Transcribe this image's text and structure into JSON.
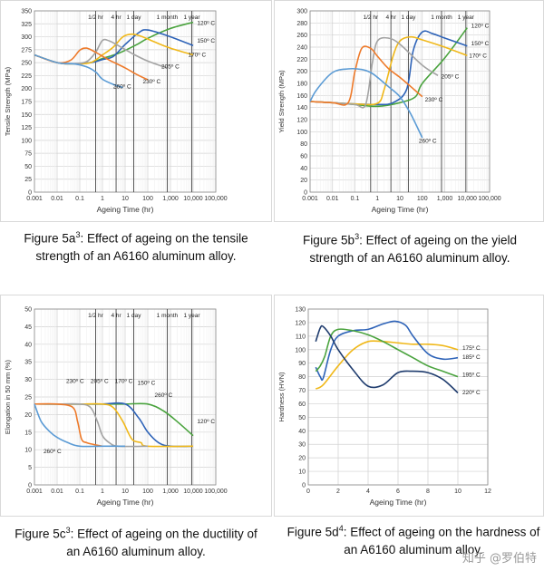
{
  "charts": [
    {
      "id": "5a",
      "caption": {
        "prefix": "Figure 5a",
        "sup": "3",
        "rest": ": Effect of ageing on the tensile strength of an A6160 aluminum alloy."
      },
      "chart_data": {
        "type": "line",
        "xscale": "log",
        "xlabel": "Ageing Time  (hr)",
        "ylabel": "Tensile Strength  (MPa)",
        "xlim": [
          0.001,
          100000
        ],
        "ylim": [
          0,
          350
        ],
        "xticks": [
          "0.001",
          "0.01",
          "0.1",
          "1",
          "10",
          "100",
          "1,000",
          "10,000",
          "100,000"
        ],
        "yticks": [
          "0",
          "25",
          "50",
          "75",
          "100",
          "125",
          "150",
          "175",
          "200",
          "225",
          "250",
          "275",
          "300",
          "325",
          "350"
        ],
        "markers": [
          {
            "label": "1/2 hr",
            "x": 0.5
          },
          {
            "label": "4 hr",
            "x": 4
          },
          {
            "label": "1 day",
            "x": 24
          },
          {
            "label": "1 month",
            "x": 720
          },
          {
            "label": "1 year",
            "x": 8760
          }
        ],
        "series": [
          {
            "name": "120° C",
            "color": "#4aa33e",
            "x": [
              0.001,
              0.01,
              0.05,
              0.3,
              1,
              5,
              30,
              100,
              1000,
              10000
            ],
            "y": [
              265,
              250,
              248,
              250,
              258,
              268,
              284,
              297,
              316,
              328
            ]
          },
          {
            "name": "150° C",
            "color": "#2e63b8",
            "x": [
              0.001,
              0.01,
              0.05,
              0.3,
              1,
              3,
              10,
              40,
              100,
              1000,
              10000
            ],
            "y": [
              265,
              250,
              248,
              250,
              256,
              262,
              285,
              308,
              313,
              300,
              283
            ]
          },
          {
            "name": "170° C",
            "color": "#f0b81a",
            "x": [
              0.001,
              0.01,
              0.05,
              0.3,
              1,
              3,
              8,
              20,
              50,
              200,
              1000,
              10000
            ],
            "y": [
              265,
              250,
              248,
              250,
              265,
              280,
              300,
              305,
              301,
              290,
              278,
              265
            ]
          },
          {
            "name": "205° C",
            "color": "#a3a3a3",
            "x": [
              0.001,
              0.01,
              0.05,
              0.2,
              0.5,
              1,
              2,
              5,
              20,
              100,
              700
            ],
            "y": [
              265,
              250,
              248,
              252,
              270,
              293,
              292,
              283,
              268,
              253,
              240
            ]
          },
          {
            "name": "230° C",
            "color": "#ee7a2a",
            "x": [
              0.001,
              0.01,
              0.04,
              0.1,
              0.2,
              0.5,
              2,
              10,
              30,
              100
            ],
            "y": [
              265,
              250,
              255,
              274,
              278,
              270,
              255,
              240,
              228,
              217
            ]
          },
          {
            "name": "260° C",
            "color": "#5b9bd5",
            "x": [
              0.001,
              0.01,
              0.05,
              0.2,
              0.5,
              1,
              3,
              8
            ],
            "y": [
              265,
              250,
              248,
              242,
              232,
              218,
              208,
              202
            ]
          }
        ],
        "annotations": [
          {
            "text": "120º C",
            "x": 15000,
            "y": 323
          },
          {
            "text": "150º C",
            "x": 15000,
            "y": 289
          },
          {
            "text": "170º C",
            "x": 6000,
            "y": 262
          },
          {
            "text": "205º C",
            "x": 400,
            "y": 239
          },
          {
            "text": "230º C",
            "x": 60,
            "y": 210
          },
          {
            "text": "260º C",
            "x": 3,
            "y": 200
          }
        ]
      }
    },
    {
      "id": "5b",
      "caption": {
        "prefix": "Figure 5b",
        "sup": "3",
        "rest": ": Effect of ageing on the yield strength of an A6160 aluminum alloy."
      },
      "chart_data": {
        "type": "line",
        "xscale": "log",
        "xlabel": "Ageing Time  (hr)",
        "ylabel": "Yield Strength  (MPa)",
        "xlim": [
          0.001,
          100000
        ],
        "ylim": [
          0,
          300
        ],
        "xticks": [
          "0.001",
          "0.01",
          "0.1",
          "1",
          "10",
          "100",
          "1,000",
          "10,000",
          "100,000"
        ],
        "yticks": [
          "0",
          "20",
          "40",
          "60",
          "80",
          "100",
          "120",
          "140",
          "160",
          "180",
          "200",
          "220",
          "240",
          "260",
          "280",
          "300"
        ],
        "markers": [
          {
            "label": "1/2 hr",
            "x": 0.5
          },
          {
            "label": "4 hr",
            "x": 4
          },
          {
            "label": "1 day",
            "x": 24
          },
          {
            "label": "1 month",
            "x": 720
          },
          {
            "label": "1 year",
            "x": 8760
          }
        ],
        "series": [
          {
            "name": "120° C",
            "color": "#4aa33e",
            "x": [
              0.001,
              0.01,
              0.1,
              1,
              10,
              50,
              100,
              1000,
              10000
            ],
            "y": [
              150,
              148,
              145,
              142,
              148,
              158,
              180,
              222,
              272
            ]
          },
          {
            "name": "150° C",
            "color": "#2e63b8",
            "x": [
              0.001,
              0.01,
              0.1,
              1,
              5,
              20,
              40,
              100,
              300,
              1000,
              10000
            ],
            "y": [
              150,
              148,
              146,
              145,
              148,
              170,
              235,
              265,
              262,
              255,
              242
            ]
          },
          {
            "name": "170° C",
            "color": "#f0b81a",
            "x": [
              0.001,
              0.01,
              0.1,
              1,
              2,
              5,
              10,
              30,
              100,
              1000,
              10000
            ],
            "y": [
              150,
              148,
              146,
              147,
              170,
              225,
              250,
              257,
              252,
              240,
              226
            ]
          },
          {
            "name": "205° C",
            "color": "#a3a3a3",
            "x": [
              0.001,
              0.01,
              0.1,
              0.3,
              0.6,
              1,
              3,
              10,
              100,
              500
            ],
            "y": [
              150,
              148,
              145,
              145,
              215,
              250,
              255,
              245,
              210,
              193
            ]
          },
          {
            "name": "230° C",
            "color": "#ee7a2a",
            "x": [
              0.001,
              0.01,
              0.05,
              0.1,
              0.2,
              0.5,
              1,
              3,
              10,
              30,
              100
            ],
            "y": [
              150,
              148,
              148,
              200,
              238,
              238,
              225,
              205,
              190,
              175,
              158
            ]
          },
          {
            "name": "260° C",
            "color": "#5b9bd5",
            "x": [
              0.001,
              0.002,
              0.01,
              0.05,
              0.2,
              0.5,
              1,
              3,
              10,
              30,
              100
            ],
            "y": [
              150,
              170,
              198,
              204,
              203,
              198,
              190,
              175,
              158,
              130,
              90
            ]
          }
        ],
        "annotations": [
          {
            "text": "120º C",
            "x": 15000,
            "y": 272
          },
          {
            "text": "150º C",
            "x": 15000,
            "y": 243
          },
          {
            "text": "170º C",
            "x": 12000,
            "y": 223
          },
          {
            "text": "205º C",
            "x": 700,
            "y": 188
          },
          {
            "text": "230º C",
            "x": 130,
            "y": 150
          },
          {
            "text": "260º C",
            "x": 70,
            "y": 82
          }
        ]
      }
    },
    {
      "id": "5c",
      "caption": {
        "prefix": "Figure 5c",
        "sup": "3",
        "rest": ": Effect of ageing on the ductility of an A6160 aluminum alloy."
      },
      "chart_data": {
        "type": "line",
        "xscale": "log",
        "xlabel": "Ageing Time  (hr)",
        "ylabel": "Elongation in 50 mm  (%)",
        "xlim": [
          0.001,
          100000
        ],
        "ylim": [
          0,
          50
        ],
        "xticks": [
          "0.001",
          "0.01",
          "0.1",
          "1",
          "10",
          "100",
          "1,000",
          "10,000",
          "100,000"
        ],
        "yticks": [
          "0",
          "5",
          "10",
          "15",
          "20",
          "25",
          "30",
          "35",
          "40",
          "45",
          "50"
        ],
        "markers": [
          {
            "label": "1/2 hr",
            "x": 0.5
          },
          {
            "label": "4 hr",
            "x": 4
          },
          {
            "label": "1 day",
            "x": 24
          },
          {
            "label": "1 month",
            "x": 720
          },
          {
            "label": "1 year",
            "x": 8760
          }
        ],
        "series": [
          {
            "name": "120° C",
            "color": "#4aa33e",
            "x": [
              0.001,
              0.01,
              0.1,
              1,
              10,
              100,
              500,
              2000,
              10000
            ],
            "y": [
              23,
              23,
              23,
              23,
              23,
              23,
              21,
              18,
              14
            ]
          },
          {
            "name": "150° C",
            "color": "#2e63b8",
            "x": [
              0.001,
              0.01,
              0.1,
              1,
              10,
              40,
              100,
              300,
              1000,
              10000
            ],
            "y": [
              23,
              23,
              23,
              23,
              23,
              19,
              15,
              12,
              11,
              11
            ]
          },
          {
            "name": "170° C",
            "color": "#f0b81a",
            "x": [
              0.001,
              0.01,
              0.1,
              1,
              3,
              8,
              20,
              50,
              100,
              10000
            ],
            "y": [
              23,
              23,
              23,
              23,
              22,
              18,
              13,
              12,
              11,
              11
            ]
          },
          {
            "name": "205° C",
            "color": "#a3a3a3",
            "x": [
              0.001,
              0.01,
              0.1,
              0.3,
              0.6,
              1,
              2,
              5,
              100
            ],
            "y": [
              23,
              23,
              23,
              22,
              18,
              14,
              12,
              11,
              11
            ]
          },
          {
            "name": "230° C",
            "color": "#ee7a2a",
            "x": [
              0.001,
              0.01,
              0.05,
              0.08,
              0.12,
              0.2,
              0.4,
              1
            ],
            "y": [
              23,
              23,
              22,
              18,
              13,
              12,
              11.5,
              11
            ]
          },
          {
            "name": "260° C",
            "color": "#5b9bd5",
            "x": [
              0.001,
              0.002,
              0.005,
              0.01,
              0.03,
              0.1,
              1,
              10
            ],
            "y": [
              23,
              18,
              15,
              13.5,
              12,
              11,
              11,
              11
            ]
          }
        ],
        "annotations": [
          {
            "text": "230º C",
            "x": 0.025,
            "y": 29
          },
          {
            "text": "205º C",
            "x": 0.3,
            "y": 29
          },
          {
            "text": "170º C",
            "x": 3.5,
            "y": 29
          },
          {
            "text": "150º C",
            "x": 35,
            "y": 28.5
          },
          {
            "text": "260º C",
            "x": 200,
            "y": 25
          },
          {
            "text": "120º C",
            "x": 15000,
            "y": 17.5
          },
          {
            "text": "260º C",
            "x": 0.0025,
            "y": 9
          }
        ]
      }
    },
    {
      "id": "5d",
      "caption": {
        "prefix": "Figure 5d",
        "sup": "4",
        "rest": ": Effect of ageing on the hardness of an A6160 aluminum alloy."
      },
      "chart_data": {
        "type": "line",
        "xscale": "linear",
        "xlabel": "Ageing Time  (hr)",
        "ylabel": "Hardness  (HVN)",
        "xlim": [
          0,
          12
        ],
        "ylim": [
          0,
          130
        ],
        "xticks": [
          "0",
          "2",
          "4",
          "6",
          "8",
          "10",
          "12"
        ],
        "yticks": [
          "0",
          "10",
          "20",
          "30",
          "40",
          "50",
          "60",
          "70",
          "80",
          "90",
          "100",
          "110",
          "120",
          "130"
        ],
        "series": [
          {
            "name": "175° C",
            "color": "#f0b81a",
            "x": [
              0.5,
              1,
              2,
              3,
              4,
              5,
              6,
              7,
              8,
              9,
              10
            ],
            "y": [
              71,
              74,
              88,
              100,
              106,
              106,
              105,
              104,
              104,
              103,
              100
            ]
          },
          {
            "name": "185° C",
            "color": "#2e63b8",
            "x": [
              0.5,
              0.8,
              1,
              1.5,
              2,
              3,
              4,
              5,
              5.8,
              6.5,
              7,
              8,
              9,
              10
            ],
            "y": [
              87,
              80,
              79,
              100,
              110,
              114,
              115,
              119,
              121,
              118,
              110,
              97,
              93,
              94
            ]
          },
          {
            "name": "195° C",
            "color": "#4aa33e",
            "x": [
              0.5,
              0.8,
              1.1,
              1.5,
              2,
              3,
              4,
              5,
              6,
              7,
              8,
              9,
              10
            ],
            "y": [
              84,
              88,
              95,
              110,
              115,
              114,
              111,
              106,
              100,
              94,
              88,
              84,
              80
            ]
          },
          {
            "name": "220° C",
            "color": "#1f3c6e",
            "x": [
              0.5,
              0.8,
              1,
              1.5,
              2,
              3,
              4,
              5,
              6,
              7,
              8,
              9,
              10
            ],
            "y": [
              106,
              116,
              117,
              110,
              100,
              85,
              73,
              74,
              83,
              84,
              83,
              78,
              68
            ]
          }
        ],
        "annotations": [
          {
            "text": "175º C",
            "x": 10.3,
            "y": 100
          },
          {
            "text": "185º C",
            "x": 10.3,
            "y": 93
          },
          {
            "text": "195º C",
            "x": 10.3,
            "y": 80
          },
          {
            "text": "220º C",
            "x": 10.3,
            "y": 67
          }
        ]
      }
    }
  ],
  "watermark": "知乎 @罗伯特"
}
